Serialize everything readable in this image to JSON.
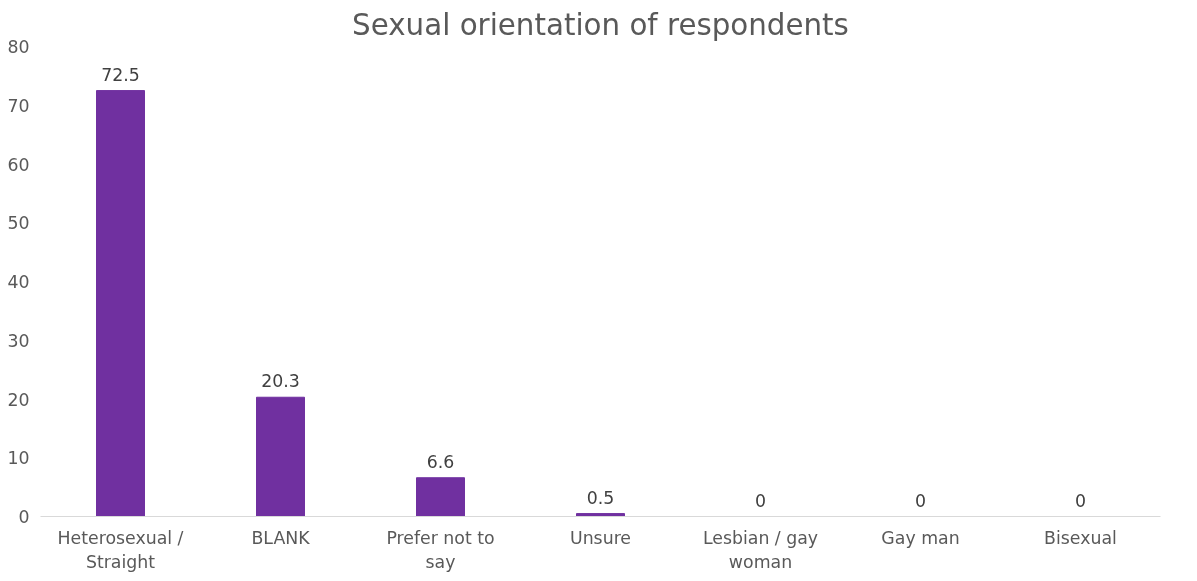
{
  "chart_data": {
    "type": "bar",
    "title": "Sexual orientation of respondents",
    "categories": [
      "Heterosexual / Straight",
      "BLANK",
      "Prefer not to say",
      "Unsure",
      "Lesbian / gay woman",
      "Gay man",
      "Bisexual"
    ],
    "values": [
      72.5,
      20.3,
      6.6,
      0.5,
      0,
      0,
      0
    ],
    "color": "#7030a0",
    "ylim": [
      0,
      80
    ],
    "yticks": [
      0,
      10,
      20,
      30,
      40,
      50,
      60,
      70,
      80
    ],
    "grid": false,
    "data_labels": true
  }
}
